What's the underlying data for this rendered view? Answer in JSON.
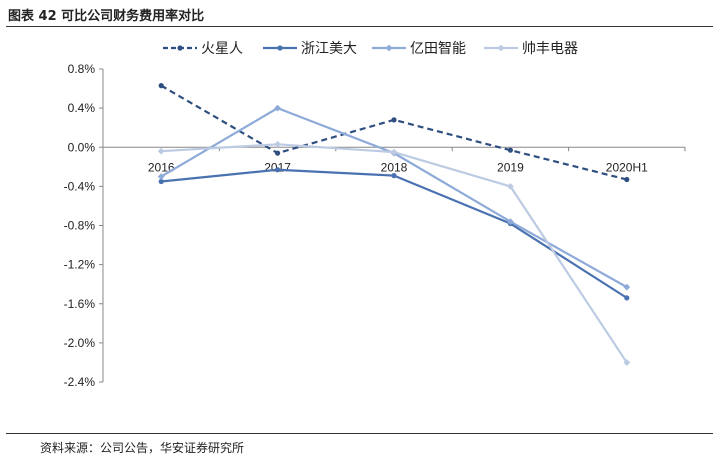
{
  "header": {
    "title": "图表 42  可比公司财务费用率对比"
  },
  "footer": {
    "source": "资料来源：公司公告，华安证券研究所"
  },
  "chart_data": {
    "type": "line",
    "title": "",
    "xlabel": "",
    "ylabel": "",
    "categories": [
      "2016",
      "2017",
      "2018",
      "2019",
      "2020H1"
    ],
    "y_ticks": [
      "0.8%",
      "0.4%",
      "0.0%",
      "-0.4%",
      "-0.8%",
      "-1.2%",
      "-1.6%",
      "-2.0%",
      "-2.4%"
    ],
    "ylim": [
      -2.4,
      0.8
    ],
    "unit": "%",
    "legend_position": "top",
    "series": [
      {
        "name": "火星人",
        "values": [
          0.63,
          -0.06,
          0.28,
          -0.03,
          -0.33
        ],
        "color": "#2e4f7f",
        "dash": true
      },
      {
        "name": "浙江美大",
        "values": [
          -0.35,
          -0.23,
          -0.29,
          -0.78,
          -1.54
        ],
        "color": "#4a72b0",
        "dash": false
      },
      {
        "name": "亿田智能",
        "values": [
          -0.3,
          0.4,
          -0.06,
          -0.76,
          -1.43
        ],
        "color": "#8eaad8",
        "dash": false
      },
      {
        "name": "帅丰电器",
        "values": [
          -0.04,
          0.03,
          -0.05,
          -0.4,
          -2.2
        ],
        "color": "#bccbe3",
        "dash": false
      }
    ]
  }
}
